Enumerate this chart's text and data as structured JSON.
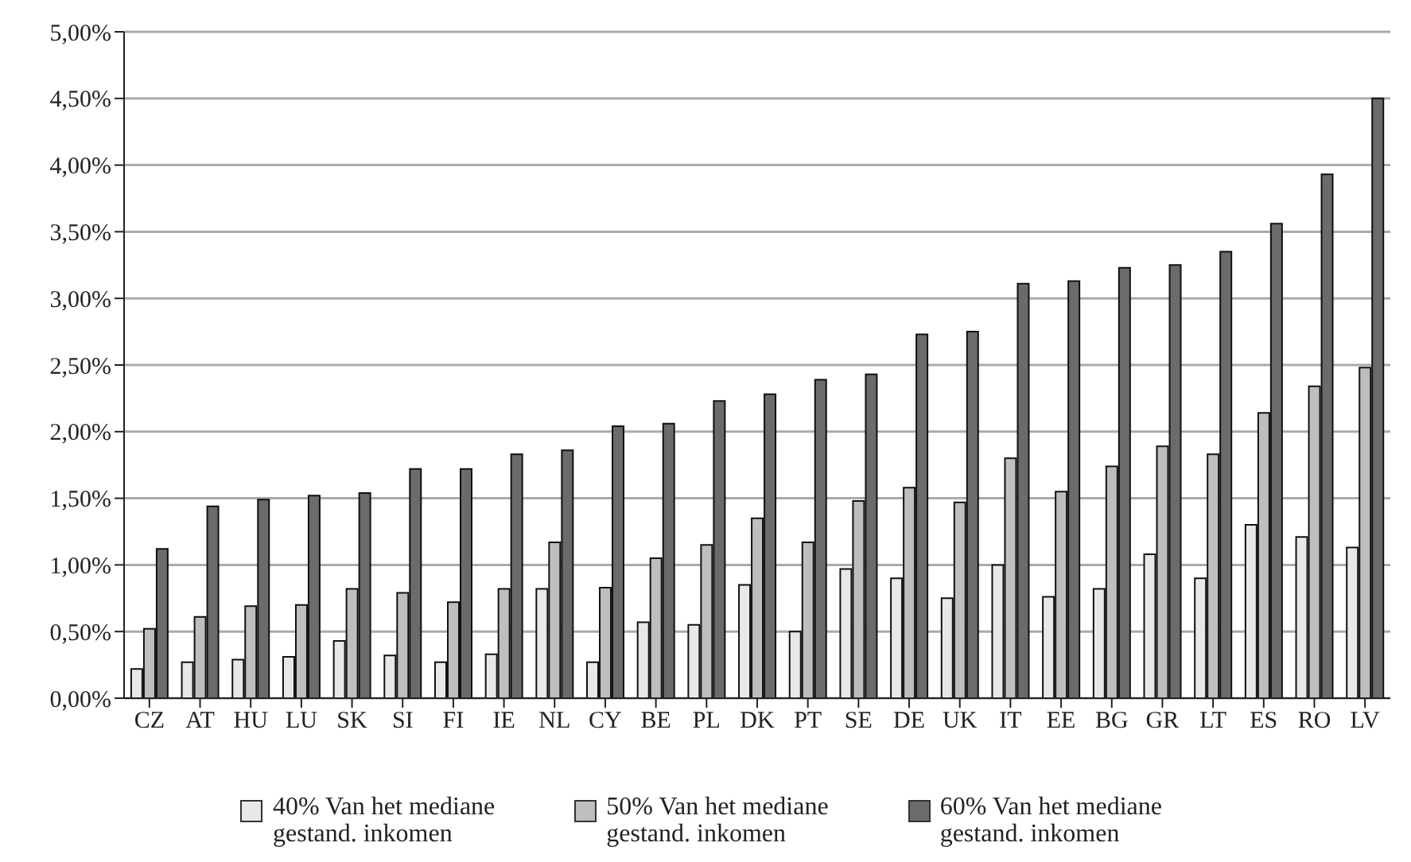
{
  "chart_data": {
    "type": "bar",
    "categories": [
      "CZ",
      "AT",
      "HU",
      "LU",
      "SK",
      "SI",
      "FI",
      "IE",
      "NL",
      "CY",
      "BE",
      "PL",
      "DK",
      "PT",
      "SE",
      "DE",
      "UK",
      "IT",
      "EE",
      "BG",
      "GR",
      "LT",
      "ES",
      "RO",
      "LV"
    ],
    "series": [
      {
        "name": "40% Van het mediane gestand. inkomen",
        "color": "#e8e8e8",
        "values": [
          0.22,
          0.27,
          0.29,
          0.31,
          0.43,
          0.32,
          0.27,
          0.33,
          0.82,
          0.27,
          0.57,
          0.55,
          0.85,
          0.5,
          0.97,
          0.9,
          0.75,
          1.0,
          0.76,
          0.82,
          1.08,
          0.9,
          1.3,
          1.21,
          1.13
        ]
      },
      {
        "name": "50% Van het mediane gestand. inkomen",
        "color": "#bebebe",
        "values": [
          0.52,
          0.61,
          0.69,
          0.7,
          0.82,
          0.79,
          0.72,
          0.82,
          1.17,
          0.83,
          1.05,
          1.15,
          1.35,
          1.17,
          1.48,
          1.58,
          1.47,
          1.8,
          1.55,
          1.74,
          1.89,
          1.83,
          2.14,
          2.34,
          2.48
        ]
      },
      {
        "name": "60% Van het mediane gestand. inkomen",
        "color": "#6b6b6b",
        "values": [
          1.12,
          1.44,
          1.49,
          1.52,
          1.54,
          1.72,
          1.72,
          1.83,
          1.86,
          2.04,
          2.06,
          2.23,
          2.28,
          2.39,
          2.43,
          2.73,
          2.75,
          3.11,
          3.13,
          3.23,
          3.25,
          3.35,
          3.56,
          3.93,
          4.5
        ]
      }
    ],
    "ylim": [
      0,
      5
    ],
    "yticks": [
      {
        "value": 0,
        "label": "0,00%"
      },
      {
        "value": 0.5,
        "label": "0,50%"
      },
      {
        "value": 1,
        "label": "1,00%"
      },
      {
        "value": 1.5,
        "label": "1,50%"
      },
      {
        "value": 2,
        "label": "2,00%"
      },
      {
        "value": 2.5,
        "label": "2,50%"
      },
      {
        "value": 3,
        "label": "3,00%"
      },
      {
        "value": 3.5,
        "label": "3,50%"
      },
      {
        "value": 4,
        "label": "4,00%"
      },
      {
        "value": 4.5,
        "label": "4,50%"
      },
      {
        "value": 5,
        "label": "5,00%"
      }
    ],
    "grid": "y",
    "legend": "bottom"
  }
}
